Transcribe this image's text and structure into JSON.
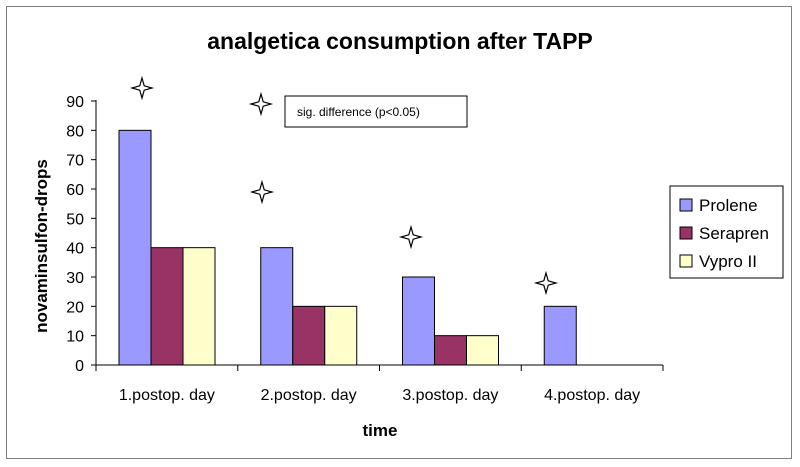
{
  "chart_data": {
    "type": "bar",
    "title": "analgetica consumption after TAPP",
    "xlabel": "time",
    "ylabel": "novaminsulfon-drops",
    "ylim": [
      0,
      90
    ],
    "yticks": [
      0,
      10,
      20,
      30,
      40,
      50,
      60,
      70,
      80,
      90
    ],
    "grid": false,
    "legend_position": "right",
    "categories": [
      "1.postop. day",
      "2.postop. day",
      "3.postop. day",
      "4.postop. day"
    ],
    "series": [
      {
        "name": "Prolene",
        "color": "#9999ff",
        "values": [
          80,
          40,
          30,
          20
        ]
      },
      {
        "name": "Serapren",
        "color": "#993366",
        "values": [
          40,
          20,
          10,
          null
        ]
      },
      {
        "name": "Vypro II",
        "color": "#ffffcc",
        "values": [
          40,
          20,
          10,
          null
        ]
      }
    ],
    "annotation": "sig. difference (p<0.05)",
    "significance_marker": "four-point-star-icon"
  }
}
